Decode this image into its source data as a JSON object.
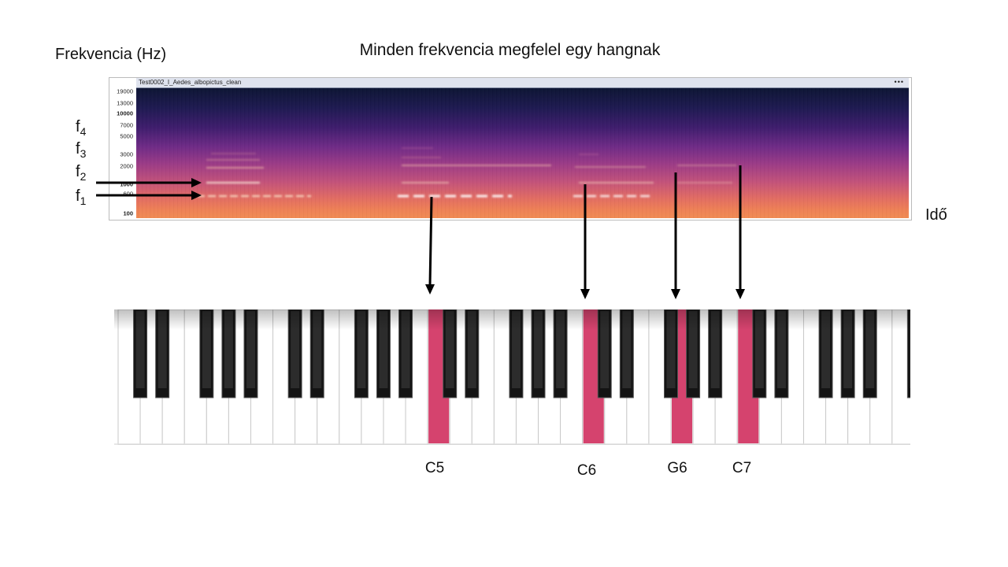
{
  "title": "Minden frekvencia megfelel egy hangnak",
  "axis": {
    "frequency_label": "Frekvencia (Hz)",
    "time_label": "Idő"
  },
  "harmonics": [
    {
      "base": "f",
      "sub": "4"
    },
    {
      "base": "f",
      "sub": "3"
    },
    {
      "base": "f",
      "sub": "2"
    },
    {
      "base": "f",
      "sub": "1"
    }
  ],
  "spectrogram": {
    "window_title": "Test0002_I_Aedes_albopictus_clean",
    "menu_glyph": "•••",
    "y_ticks": [
      "19000",
      "13000",
      "10000",
      "7000",
      "5000",
      "3000",
      "2000",
      "1000",
      "600",
      "100"
    ],
    "colors": {
      "dark": "#0c1433",
      "mid": "#9a3a86",
      "bright": "#f08a52"
    }
  },
  "notes": [
    {
      "label": "C5",
      "color": "#d5436e"
    },
    {
      "label": "C6",
      "color": "#d5436e"
    },
    {
      "label": "G6",
      "color": "#d5436e"
    },
    {
      "label": "C7",
      "color": "#d5436e"
    }
  ]
}
